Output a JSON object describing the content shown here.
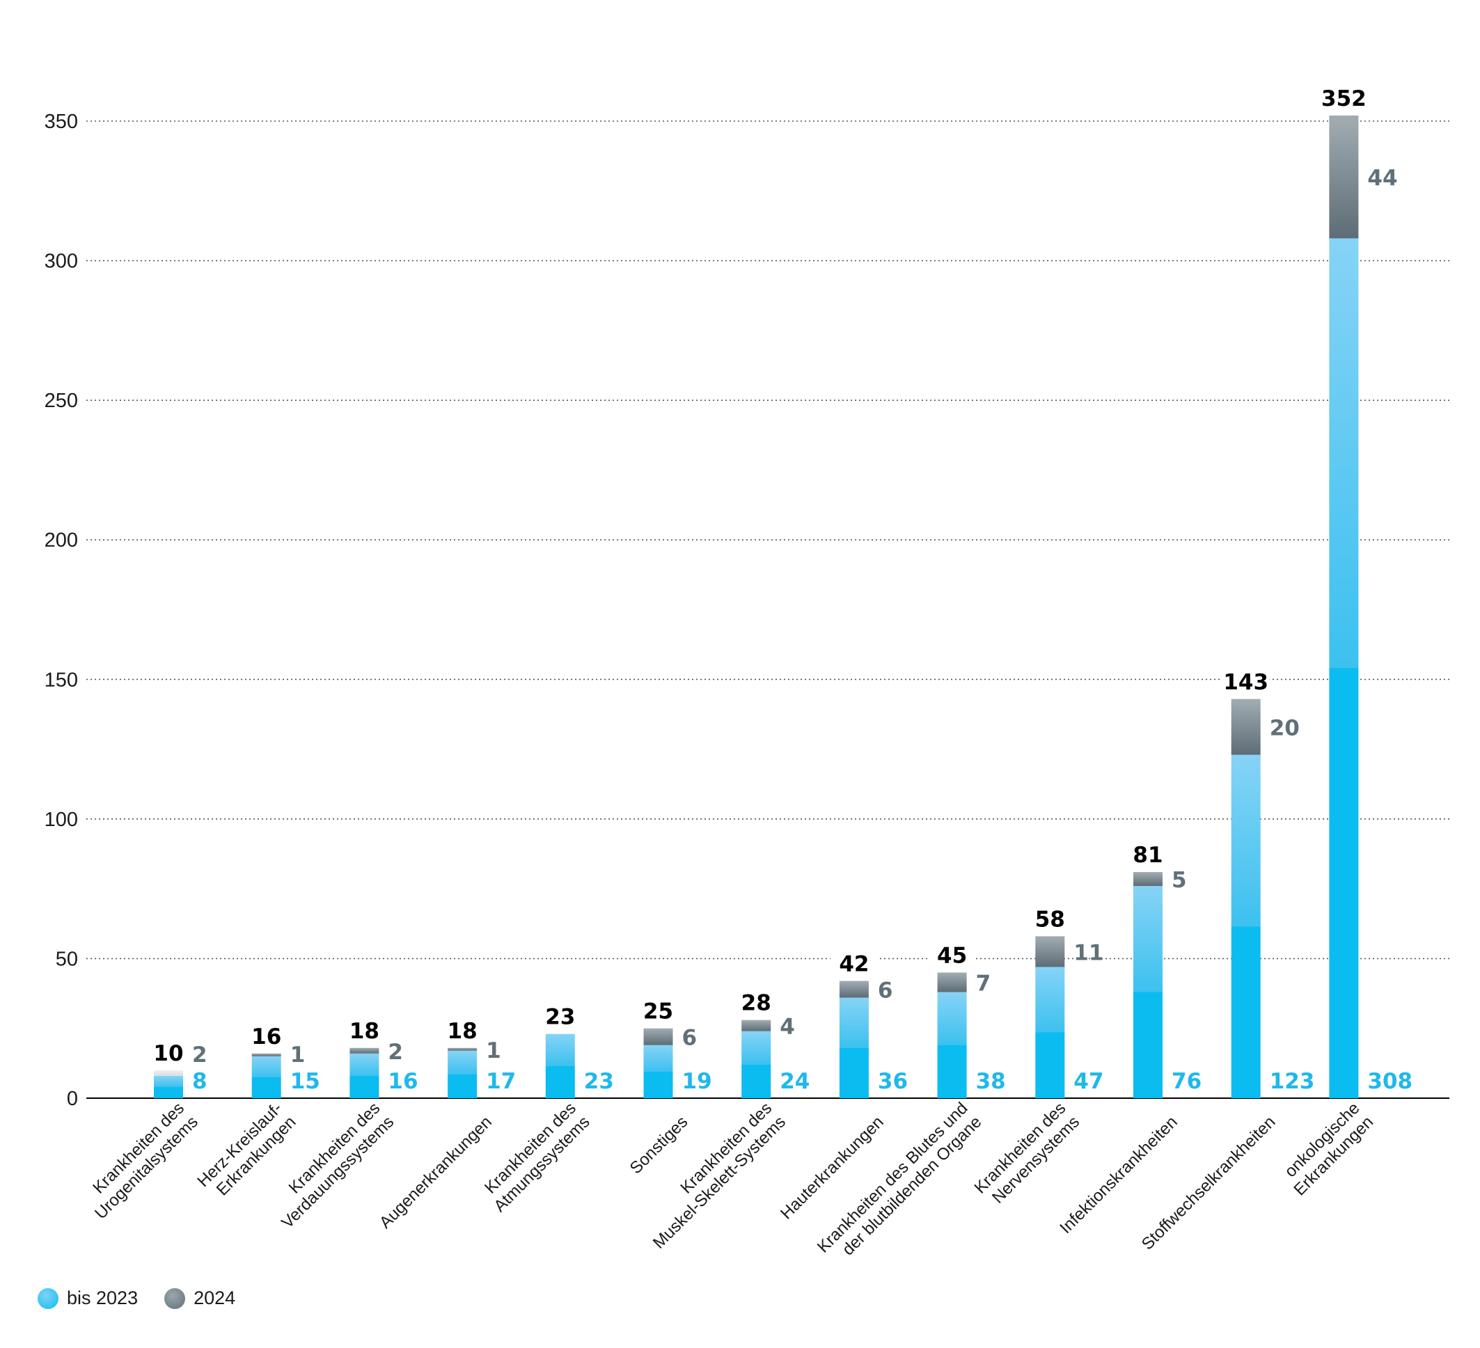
{
  "chart_data": {
    "type": "bar",
    "stacked": true,
    "title": "",
    "xlabel": "",
    "ylabel": "",
    "ylim": [
      0,
      350
    ],
    "yticks": [
      0,
      50,
      100,
      150,
      200,
      250,
      300,
      350
    ],
    "grid": true,
    "categories": [
      [
        "Krankheiten des",
        "Urogenitalsystems"
      ],
      [
        "Herz-Kreislauf-",
        "Erkrankungen"
      ],
      [
        "Krankheiten des",
        "Verdauungssystems"
      ],
      [
        "Augenerkrankungen"
      ],
      [
        "Krankheiten des",
        "Atmungssystems"
      ],
      [
        "Sonstiges"
      ],
      [
        "Krankheiten des",
        "Muskel-Skelett-Systems"
      ],
      [
        "Hauterkrankungen"
      ],
      [
        "Krankheiten des Blutes und",
        "der blutbildenden Organe"
      ],
      [
        "Krankheiten des",
        "Nervensystems"
      ],
      [
        "Infektionskrankheiten"
      ],
      [
        "Stoffwechselkrankheiten"
      ],
      [
        "onkologische",
        "Erkrankungen"
      ]
    ],
    "series": [
      {
        "name": "bis 2023",
        "color": "#0bbcf0",
        "values": [
          8,
          15,
          16,
          17,
          23,
          19,
          24,
          36,
          38,
          47,
          76,
          123,
          308
        ]
      },
      {
        "name": "2024",
        "color": "#5f6e77",
        "values": [
          2,
          1,
          2,
          1,
          null,
          6,
          4,
          6,
          7,
          11,
          5,
          20,
          44
        ]
      }
    ],
    "totals": [
      10,
      16,
      18,
      18,
      23,
      25,
      28,
      42,
      45,
      58,
      81,
      143,
      352
    ],
    "legend_position": "bottom-left"
  },
  "legend": {
    "items": [
      {
        "label": "bis 2023",
        "color": "#0bbcf0"
      },
      {
        "label": "2024",
        "color": "#5f6e77"
      }
    ]
  }
}
